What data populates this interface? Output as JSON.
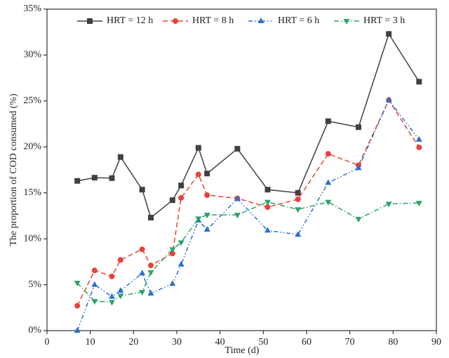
{
  "chart_data": {
    "type": "line",
    "xlabel": "Time (d)",
    "ylabel": "The proportion of COD consumed (%)",
    "x": [
      7,
      11,
      15,
      17,
      22,
      24,
      29,
      31,
      35,
      37,
      44,
      51,
      58,
      65,
      72,
      79,
      86
    ],
    "series": [
      {
        "name": "HRT = 12 h",
        "color": "#404040",
        "line_style": "solid",
        "marker": "square",
        "values": [
          16.3,
          16.65,
          16.6,
          18.9,
          15.35,
          12.3,
          14.2,
          15.8,
          19.9,
          17.1,
          19.8,
          15.35,
          15.0,
          22.8,
          22.15,
          32.3,
          27.1
        ]
      },
      {
        "name": "HRT = 8 h",
        "color": "#e8413c",
        "line_style": "dashed",
        "marker": "circle",
        "values": [
          2.7,
          6.55,
          5.9,
          7.7,
          8.85,
          7.1,
          8.4,
          14.45,
          17.0,
          14.75,
          14.4,
          13.45,
          14.3,
          19.25,
          18.0,
          25.1,
          19.95
        ]
      },
      {
        "name": "HRT = 6 h",
        "color": "#2c6fd1",
        "line_style": "dashdotdot",
        "marker": "triangle-up",
        "values": [
          0,
          5.0,
          3.7,
          4.35,
          6.25,
          4.05,
          5.1,
          7.2,
          12.0,
          11.0,
          14.35,
          10.9,
          10.45,
          16.1,
          17.7,
          25.1,
          20.8
        ]
      },
      {
        "name": "HRT = 3 h",
        "color": "#2ea36b",
        "line_style": "dashdot",
        "marker": "triangle-down",
        "values": [
          5.2,
          3.2,
          3.1,
          3.8,
          4.2,
          6.35,
          8.85,
          9.6,
          12.2,
          12.6,
          12.6,
          14.0,
          13.2,
          14.0,
          12.15,
          13.8,
          13.9
        ]
      }
    ],
    "xlim": [
      0,
      90
    ],
    "xticks": [
      0,
      10,
      20,
      30,
      40,
      50,
      60,
      70,
      80,
      90
    ],
    "ylim": [
      0,
      35
    ],
    "yticks": [
      {
        "value": 0,
        "label": "0%"
      },
      {
        "value": 5,
        "label": "5%"
      },
      {
        "value": 10,
        "label": "10%"
      },
      {
        "value": 15,
        "label": "15%"
      },
      {
        "value": 20,
        "label": "20%"
      },
      {
        "value": 25,
        "label": "25%"
      },
      {
        "value": 30,
        "label": "30%"
      },
      {
        "value": 35,
        "label": "35%"
      }
    ],
    "grid": false,
    "legend_position": "top"
  }
}
